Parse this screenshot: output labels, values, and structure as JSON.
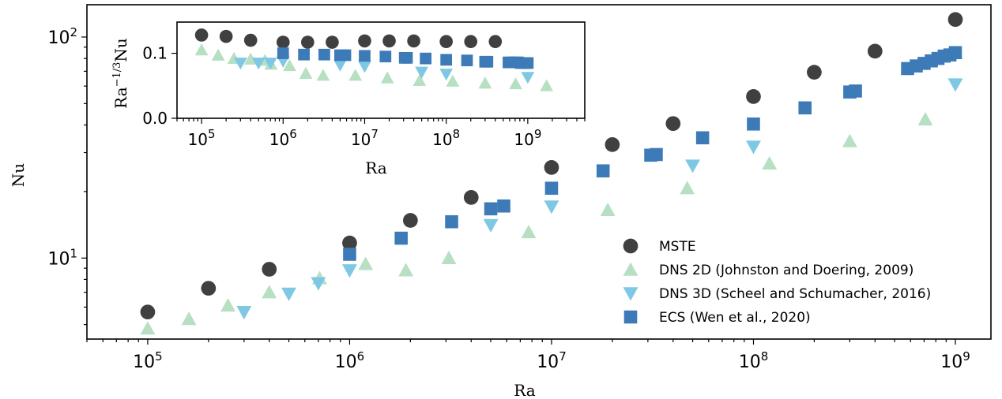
{
  "chart_data": [
    {
      "type": "scatter",
      "xscale": "log",
      "yscale": "log",
      "xlabel": "Ra",
      "ylabel": "Nu",
      "xlim": [
        50000,
        1500000000
      ],
      "ylim": [
        4.3,
        140
      ],
      "xticks": [
        {
          "base": "10",
          "exp": "5",
          "value": 100000
        },
        {
          "base": "10",
          "exp": "6",
          "value": 1000000
        },
        {
          "base": "10",
          "exp": "7",
          "value": 10000000
        },
        {
          "base": "10",
          "exp": "8",
          "value": 100000000
        },
        {
          "base": "10",
          "exp": "9",
          "value": 1000000000
        }
      ],
      "yticks": [
        {
          "base": "10",
          "exp": "1",
          "value": 10
        },
        {
          "base": "10",
          "exp": "2",
          "value": 100
        }
      ],
      "legend_position": "lower-right",
      "series": [
        {
          "name": "MSTE",
          "marker": "circle",
          "color": "#404040",
          "x": [
            100000,
            200000,
            400000,
            1000000,
            2000000,
            4000000,
            10000000,
            20000000,
            40000000,
            100000000,
            200000000,
            400000000,
            1000000000
          ],
          "y": [
            5.7,
            7.3,
            8.9,
            11.7,
            14.8,
            18.8,
            25.7,
            32.6,
            40.6,
            53.8,
            69.3,
            86.3,
            120
          ]
        },
        {
          "name": "DNS 2D (Johnston and Doering, 2009)",
          "marker": "triangle-up",
          "color": "#b7e0c3",
          "x": [
            100000,
            160000,
            250000,
            400000,
            710000,
            1200000,
            1900000,
            3100000,
            7700000,
            19000000,
            47000000,
            120000000,
            300000000,
            710000000
          ],
          "y": [
            4.8,
            5.3,
            6.1,
            7.0,
            8.1,
            9.4,
            8.8,
            10.0,
            13.1,
            16.5,
            20.7,
            26.8,
            33.8,
            42.4
          ]
        },
        {
          "name": "DNS 3D (Scheel and Schumacher, 2016)",
          "marker": "triangle-down",
          "color": "#7ec8e3",
          "x": [
            300000,
            500000,
            700000,
            1000000,
            5000000,
            10000000,
            50000000,
            100000000,
            1000000000
          ],
          "y": [
            5.7,
            6.9,
            7.7,
            8.8,
            14.1,
            17.1,
            26.2,
            31.9,
            61.0
          ]
        },
        {
          "name": "ECS (Wen et al., 2020)",
          "marker": "square",
          "color": "#3d7ab8",
          "x": [
            1000000,
            1800000,
            3200000,
            5000000,
            5800000,
            10000000,
            18000000,
            31000000,
            33000000,
            56000000,
            100000000,
            180000000,
            300000000,
            320000000,
            580000000,
            640000000,
            700000000,
            760000000,
            820000000,
            880000000,
            940000000,
            1000000000
          ],
          "y": [
            10.4,
            12.3,
            14.6,
            16.7,
            17.2,
            20.7,
            24.8,
            29.2,
            29.4,
            35.0,
            40.4,
            47.8,
            56.4,
            57.0,
            72.0,
            74.0,
            76.0,
            78.0,
            80.0,
            82.0,
            83.0,
            85.0
          ]
        }
      ]
    },
    {
      "type": "scatter",
      "xscale": "log",
      "yscale": "linear",
      "xlabel": "Ra",
      "ylabel": "Ra^-1/3 Nu",
      "ylabel_main": "Ra",
      "ylabel_sup": "−1/3",
      "ylabel_tail": "Nu",
      "xlim": [
        50000,
        5000000000
      ],
      "ylim": [
        0.0,
        0.148
      ],
      "xticks": [
        {
          "base": "10",
          "exp": "5",
          "value": 100000
        },
        {
          "base": "10",
          "exp": "6",
          "value": 1000000
        },
        {
          "base": "10",
          "exp": "7",
          "value": 10000000
        },
        {
          "base": "10",
          "exp": "8",
          "value": 100000000
        },
        {
          "base": "10",
          "exp": "9",
          "value": 1000000000
        }
      ],
      "yticks": [
        {
          "label": "0.0",
          "value": 0.0
        },
        {
          "label": "0.1",
          "value": 0.1
        }
      ],
      "series": [
        {
          "marker": "circle",
          "color": "#404040",
          "x": [
            100000,
            200000,
            400000,
            1000000,
            2000000,
            4000000,
            10000000,
            20000000,
            40000000,
            100000000,
            200000000,
            400000000
          ],
          "y": [
            0.128,
            0.126,
            0.12,
            0.117,
            0.117,
            0.117,
            0.119,
            0.119,
            0.119,
            0.118,
            0.118,
            0.118
          ]
        },
        {
          "marker": "triangle-up",
          "color": "#b7e0c3",
          "x": [
            100000,
            160000,
            250000,
            400000,
            600000,
            710000,
            1200000,
            1900000,
            3100000,
            7700000,
            19000000,
            47000000,
            120000000,
            300000000,
            710000000,
            1700000000
          ],
          "y": [
            0.105,
            0.097,
            0.092,
            0.091,
            0.089,
            0.083,
            0.081,
            0.069,
            0.066,
            0.066,
            0.062,
            0.058,
            0.057,
            0.054,
            0.053,
            0.05
          ]
        },
        {
          "marker": "triangle-down",
          "color": "#7ec8e3",
          "x": [
            300000,
            500000,
            700000,
            1000000,
            5000000,
            10000000,
            50000000,
            100000000,
            1000000000
          ],
          "y": [
            0.085,
            0.085,
            0.085,
            0.088,
            0.082,
            0.08,
            0.071,
            0.068,
            0.063
          ]
        },
        {
          "marker": "square",
          "color": "#3d7ab8",
          "x": [
            1000000,
            1800000,
            3200000,
            5000000,
            5800000,
            10000000,
            18000000,
            31000000,
            33000000,
            56000000,
            100000000,
            180000000,
            300000000,
            320000000,
            580000000,
            640000000,
            700000000,
            760000000,
            820000000,
            880000000,
            940000000,
            1000000000
          ],
          "y": [
            0.1,
            0.098,
            0.098,
            0.097,
            0.097,
            0.096,
            0.095,
            0.093,
            0.093,
            0.092,
            0.09,
            0.089,
            0.087,
            0.087,
            0.086,
            0.086,
            0.086,
            0.086,
            0.085,
            0.085,
            0.085,
            0.085
          ]
        }
      ]
    }
  ]
}
